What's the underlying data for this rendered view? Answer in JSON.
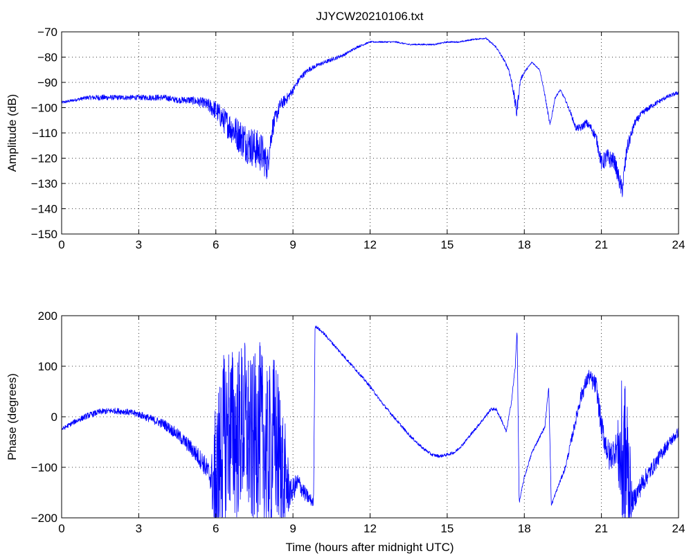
{
  "title": "JJYCW20210106.txt",
  "colors": {
    "trace": "#0000ff",
    "axes": "#000000",
    "grid": "#000000"
  },
  "chart_data": [
    {
      "type": "line",
      "name": "amplitude",
      "title": "JJYCW20210106.txt",
      "xlabel": "",
      "ylabel": "Amplitude (dB)",
      "xlim": [
        0,
        24
      ],
      "ylim": [
        -150,
        -70
      ],
      "xticks": [
        0,
        3,
        6,
        9,
        12,
        15,
        18,
        21,
        24
      ],
      "yticks": [
        -150,
        -140,
        -130,
        -120,
        -110,
        -100,
        -90,
        -80,
        -70
      ],
      "xtick_labels": [
        "0",
        "3",
        "6",
        "9",
        "12",
        "15",
        "18",
        "21",
        "24"
      ],
      "ytick_labels": [
        "−150",
        "−140",
        "−130",
        "−120",
        "−110",
        "−100",
        "−90",
        "−80",
        "−70"
      ],
      "grid": true,
      "x": [
        0,
        0.5,
        1,
        1.5,
        2,
        2.5,
        3,
        3.5,
        4,
        4.5,
        5,
        5.5,
        6,
        6.3,
        6.6,
        6.9,
        7.2,
        7.5,
        7.8,
        8.0,
        8.2,
        8.5,
        8.8,
        9.0,
        9.3,
        9.6,
        10.0,
        10.5,
        11.0,
        11.5,
        12.0,
        12.5,
        13.0,
        13.5,
        14.0,
        14.5,
        15.0,
        15.5,
        16.0,
        16.5,
        16.9,
        17.2,
        17.4,
        17.55,
        17.7,
        17.85,
        18.0,
        18.3,
        18.6,
        18.8,
        19.0,
        19.2,
        19.4,
        19.6,
        19.8,
        20.0,
        20.2,
        20.4,
        20.6,
        20.8,
        21.0,
        21.2,
        21.5,
        21.8,
        22.0,
        22.3,
        22.6,
        23.0,
        23.5,
        24.0
      ],
      "y": [
        -98,
        -97,
        -96,
        -96,
        -96,
        -96,
        -96,
        -96,
        -96,
        -97,
        -97,
        -98,
        -101,
        -105,
        -108,
        -111,
        -114,
        -116,
        -118,
        -123,
        -108,
        -99,
        -96,
        -93,
        -88,
        -85,
        -83,
        -81,
        -79,
        -76,
        -74,
        -74,
        -74,
        -75,
        -75,
        -75,
        -74,
        -74,
        -73,
        -72.5,
        -76,
        -81,
        -85,
        -92,
        -102,
        -89,
        -86,
        -82,
        -85,
        -95,
        -107,
        -96,
        -93,
        -97,
        -102,
        -108,
        -108,
        -106,
        -108,
        -112,
        -122,
        -120,
        -121,
        -133,
        -116,
        -106,
        -102,
        -99,
        -96,
        -94
      ],
      "noise": [
        0.6,
        0.6,
        0.8,
        1.2,
        1,
        1,
        1,
        1.2,
        1.2,
        1.2,
        1.5,
        2,
        4,
        5,
        6,
        7,
        8,
        8,
        8,
        6,
        4,
        2.5,
        2,
        1.5,
        1.2,
        1,
        0.8,
        0.8,
        0.6,
        0.5,
        0.3,
        0.3,
        0.3,
        0.3,
        0.3,
        0.3,
        0.3,
        0.3,
        0.3,
        0.3,
        0.5,
        0.5,
        0.8,
        1.5,
        3,
        0.8,
        0.5,
        0.3,
        0.3,
        0.6,
        1,
        0.5,
        0.4,
        0.6,
        0.8,
        1.2,
        1.5,
        1.5,
        1.5,
        2,
        3,
        4,
        3,
        4,
        3,
        1.5,
        1.2,
        1,
        0.8,
        0.8
      ]
    },
    {
      "type": "line",
      "name": "phase",
      "title": "",
      "xlabel": "Time (hours after midnight UTC)",
      "ylabel": "Phase (degrees)",
      "xlim": [
        0,
        24
      ],
      "ylim": [
        -200,
        200
      ],
      "xticks": [
        0,
        3,
        6,
        9,
        12,
        15,
        18,
        21,
        24
      ],
      "yticks": [
        -200,
        -100,
        0,
        100,
        200
      ],
      "xtick_labels": [
        "0",
        "3",
        "6",
        "9",
        "12",
        "15",
        "18",
        "21",
        "24"
      ],
      "ytick_labels": [
        "−200",
        "−100",
        "0",
        "100",
        "200"
      ],
      "grid": true,
      "x": [
        0,
        0.5,
        1,
        1.5,
        2,
        2.5,
        3,
        3.5,
        4,
        4.5,
        5,
        5.5,
        5.8,
        6.0,
        6.2,
        6.5,
        6.8,
        7.1,
        7.4,
        7.7,
        8.0,
        8.3,
        8.6,
        8.9,
        9.2,
        9.5,
        9.8,
        9.86,
        10.2,
        10.8,
        11.5,
        12.0,
        12.5,
        13.0,
        13.5,
        14.0,
        14.4,
        14.7,
        15.0,
        15.3,
        15.6,
        16.0,
        16.4,
        16.7,
        16.9,
        17.1,
        17.3,
        17.5,
        17.65,
        17.72,
        17.8,
        18.0,
        18.3,
        18.6,
        18.8,
        18.95,
        19.05,
        19.3,
        19.6,
        19.9,
        20.2,
        20.5,
        20.8,
        21.0,
        21.3,
        21.6,
        21.8,
        22.0,
        22.2,
        22.6,
        23.0,
        23.5,
        24.0
      ],
      "y": [
        -25,
        -10,
        2,
        10,
        12,
        10,
        5,
        -5,
        -15,
        -35,
        -60,
        -90,
        -120,
        -140,
        -60,
        -20,
        -40,
        -10,
        -60,
        -20,
        -80,
        -40,
        -110,
        -150,
        -130,
        -155,
        -170,
        180,
        165,
        130,
        90,
        60,
        25,
        -5,
        -35,
        -60,
        -75,
        -78,
        -75,
        -70,
        -55,
        -30,
        -5,
        15,
        15,
        -5,
        -30,
        30,
        100,
        175,
        -170,
        -120,
        -70,
        -40,
        -20,
        60,
        -175,
        -140,
        -100,
        -30,
        40,
        80,
        60,
        -20,
        -80,
        -60,
        -90,
        -100,
        -170,
        -130,
        -100,
        -60,
        -30
      ],
      "noise": [
        4,
        5,
        6,
        6,
        6,
        6,
        7,
        8,
        10,
        12,
        15,
        20,
        25,
        170,
        170,
        170,
        170,
        170,
        170,
        170,
        170,
        170,
        150,
        25,
        20,
        15,
        10,
        3,
        3,
        3,
        3,
        3,
        3,
        3,
        3,
        3,
        3,
        3,
        3,
        3,
        3,
        3,
        3,
        3,
        3,
        3,
        3,
        3,
        5,
        3,
        3,
        3,
        3,
        3,
        3,
        3,
        3,
        3,
        5,
        10,
        15,
        15,
        20,
        25,
        30,
        30,
        170,
        170,
        20,
        20,
        15,
        12,
        10
      ]
    }
  ]
}
